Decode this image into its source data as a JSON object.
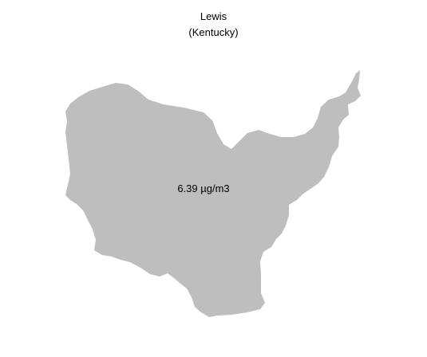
{
  "map": {
    "county_name": "Lewis",
    "state_label": "(Kentucky)",
    "value_label": "6.39 µg/m3",
    "fill_color": "#bebebe",
    "background_color": "#ffffff"
  }
}
